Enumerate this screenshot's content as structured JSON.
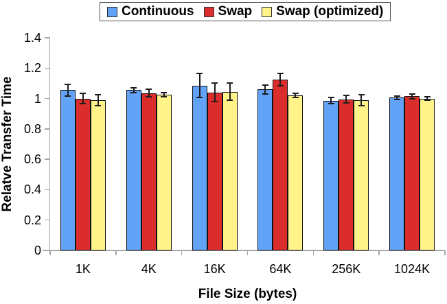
{
  "chart_data": {
    "type": "bar",
    "title": "",
    "xlabel": "File Size (bytes)",
    "ylabel": "Relatve Transfer Time",
    "categories": [
      "1K",
      "4K",
      "16K",
      "64K",
      "256K",
      "1024K"
    ],
    "series": [
      {
        "name": "Continuous",
        "color": "#63a3f7",
        "values": [
          1.055,
          1.055,
          1.085,
          1.06,
          0.985,
          1.005
        ],
        "errors": [
          0.04,
          0.015,
          0.08,
          0.03,
          0.02,
          0.01
        ]
      },
      {
        "name": "Swap",
        "color": "#dc2d2d",
        "values": [
          1.0,
          1.035,
          1.04,
          1.125,
          0.995,
          1.015
        ],
        "errors": [
          0.035,
          0.025,
          0.06,
          0.04,
          0.025,
          0.015
        ]
      },
      {
        "name": "Swap (optimized)",
        "color": "#fff38a",
        "values": [
          0.99,
          1.025,
          1.045,
          1.02,
          0.99,
          1.0
        ],
        "errors": [
          0.035,
          0.012,
          0.055,
          0.015,
          0.035,
          0.01
        ]
      }
    ],
    "ylim": [
      0,
      1.4
    ],
    "yticks": [
      0,
      0.2,
      0.4,
      0.6,
      0.8,
      1,
      1.2,
      1.4
    ],
    "grid": false,
    "legend_position": "top-center",
    "error_bars": true,
    "colors": {
      "axis": "#a6a6a6",
      "bar_border": "#121212",
      "error_bar": "#1c1c1c",
      "background": "#ffffff"
    }
  }
}
